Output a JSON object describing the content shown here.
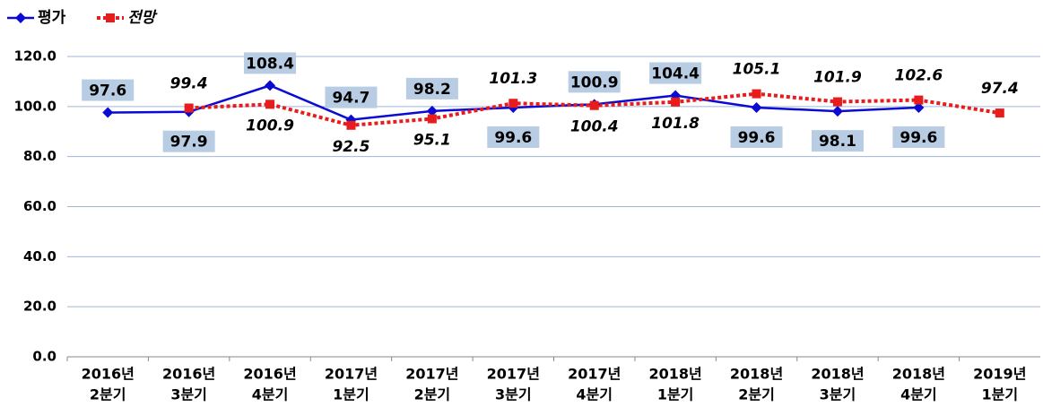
{
  "chart_data": {
    "type": "line",
    "categories": [
      [
        "2016년",
        "2분기"
      ],
      [
        "2016년",
        "3분기"
      ],
      [
        "2016년",
        "4분기"
      ],
      [
        "2017년",
        "1분기"
      ],
      [
        "2017년",
        "2분기"
      ],
      [
        "2017년",
        "3분기"
      ],
      [
        "2017년",
        "4분기"
      ],
      [
        "2018년",
        "1분기"
      ],
      [
        "2018년",
        "2분기"
      ],
      [
        "2018년",
        "3분기"
      ],
      [
        "2018년",
        "4분기"
      ],
      [
        "2019년",
        "1분기"
      ]
    ],
    "series": [
      {
        "name": "평가",
        "color": "#0a0ad2",
        "marker": "diamond",
        "dash": false,
        "values": [
          97.6,
          97.9,
          108.4,
          94.7,
          98.2,
          99.6,
          100.9,
          104.4,
          99.6,
          98.1,
          99.6,
          null
        ]
      },
      {
        "name": "전망",
        "color": "#e81c1c",
        "marker": "square",
        "dash": true,
        "values": [
          null,
          99.4,
          100.9,
          92.5,
          95.1,
          101.3,
          100.4,
          101.8,
          105.1,
          101.9,
          102.6,
          97.4
        ]
      }
    ],
    "ylim": [
      0,
      120
    ],
    "yticks": [
      {
        "value": 0,
        "label": "0.0"
      },
      {
        "value": 20,
        "label": "20.0"
      },
      {
        "value": 40,
        "label": "40.0"
      },
      {
        "value": 60,
        "label": "60.0"
      },
      {
        "value": 80,
        "label": "80.0"
      },
      {
        "value": 100,
        "label": "100.0"
      },
      {
        "value": 120,
        "label": "120.0"
      }
    ],
    "grid": true,
    "legend": "top-left"
  }
}
